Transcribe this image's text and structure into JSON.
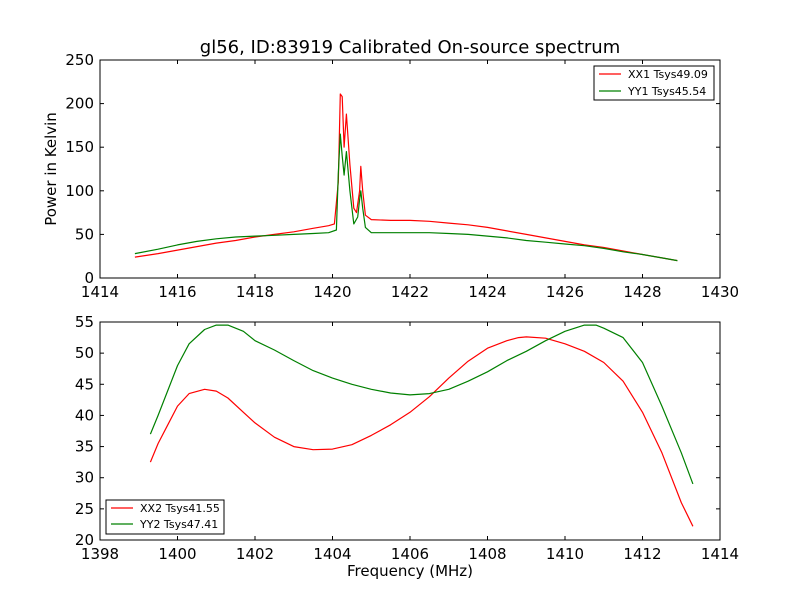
{
  "chart_data": [
    {
      "type": "line",
      "title": "gl56, ID:83919 Calibrated On-source spectrum",
      "xlabel": "",
      "ylabel": "Power in Kelvin",
      "xlim": [
        1414,
        1430
      ],
      "ylim": [
        0,
        250
      ],
      "xticks": [
        "1414",
        "1416",
        "1418",
        "1420",
        "1422",
        "1424",
        "1426",
        "1428",
        "1430"
      ],
      "yticks": [
        "0",
        "50",
        "100",
        "150",
        "200",
        "250"
      ],
      "grid": false,
      "legend": "top-right",
      "series": [
        {
          "name": "XX1 Tsys49.09",
          "color": "#ff0000",
          "points": [
            [
              1414.9,
              24
            ],
            [
              1415.5,
              28
            ],
            [
              1416,
              32
            ],
            [
              1416.5,
              36
            ],
            [
              1417,
              40
            ],
            [
              1417.5,
              43
            ],
            [
              1418,
              47
            ],
            [
              1418.5,
              50
            ],
            [
              1419,
              53
            ],
            [
              1419.5,
              57
            ],
            [
              1419.9,
              60
            ],
            [
              1420.05,
              62
            ],
            [
              1420.15,
              110
            ],
            [
              1420.2,
              211
            ],
            [
              1420.25,
              208
            ],
            [
              1420.3,
              150
            ],
            [
              1420.36,
              188
            ],
            [
              1420.45,
              130
            ],
            [
              1420.55,
              80
            ],
            [
              1420.62,
              75
            ],
            [
              1420.7,
              100
            ],
            [
              1420.73,
              128
            ],
            [
              1420.78,
              100
            ],
            [
              1420.85,
              72
            ],
            [
              1421,
              67
            ],
            [
              1421.5,
              66
            ],
            [
              1422,
              66
            ],
            [
              1422.5,
              65
            ],
            [
              1423,
              63
            ],
            [
              1423.5,
              61
            ],
            [
              1424,
              58
            ],
            [
              1424.5,
              54
            ],
            [
              1425,
              50
            ],
            [
              1425.5,
              46
            ],
            [
              1426,
              42
            ],
            [
              1426.5,
              38
            ],
            [
              1427,
              35
            ],
            [
              1427.5,
              31
            ],
            [
              1428,
              27
            ],
            [
              1428.5,
              23
            ],
            [
              1428.9,
              20
            ]
          ]
        },
        {
          "name": "YY1 Tsys45.54",
          "color": "#008000",
          "points": [
            [
              1414.9,
              28
            ],
            [
              1415.5,
              33
            ],
            [
              1416,
              38
            ],
            [
              1416.5,
              42
            ],
            [
              1417,
              45
            ],
            [
              1417.5,
              47
            ],
            [
              1418,
              48
            ],
            [
              1418.5,
              49
            ],
            [
              1419,
              50
            ],
            [
              1419.5,
              51
            ],
            [
              1419.9,
              52
            ],
            [
              1420.1,
              55
            ],
            [
              1420.15,
              120
            ],
            [
              1420.2,
              165
            ],
            [
              1420.25,
              140
            ],
            [
              1420.3,
              118
            ],
            [
              1420.36,
              145
            ],
            [
              1420.45,
              100
            ],
            [
              1420.55,
              62
            ],
            [
              1420.65,
              70
            ],
            [
              1420.7,
              90
            ],
            [
              1420.73,
              100
            ],
            [
              1420.78,
              80
            ],
            [
              1420.85,
              58
            ],
            [
              1421,
              52
            ],
            [
              1421.5,
              52
            ],
            [
              1422,
              52
            ],
            [
              1422.5,
              52
            ],
            [
              1423,
              51
            ],
            [
              1423.5,
              50
            ],
            [
              1424,
              48
            ],
            [
              1424.5,
              46
            ],
            [
              1425,
              43
            ],
            [
              1425.5,
              41
            ],
            [
              1426,
              39
            ],
            [
              1426.5,
              37
            ],
            [
              1427,
              34
            ],
            [
              1427.5,
              30
            ],
            [
              1428,
              27
            ],
            [
              1428.5,
              23
            ],
            [
              1428.9,
              20
            ]
          ]
        }
      ]
    },
    {
      "type": "line",
      "title": "",
      "xlabel": "Frequency (MHz)",
      "ylabel": "",
      "xlim": [
        1398,
        1414
      ],
      "ylim": [
        20,
        55
      ],
      "xticks": [
        "1398",
        "1400",
        "1402",
        "1404",
        "1406",
        "1408",
        "1410",
        "1412",
        "1414"
      ],
      "yticks": [
        "20",
        "25",
        "30",
        "35",
        "40",
        "45",
        "50",
        "55"
      ],
      "grid": false,
      "legend": "bottom-left",
      "series": [
        {
          "name": "XX2 Tsys41.55",
          "color": "#ff0000",
          "points": [
            [
              1399.3,
              32.5
            ],
            [
              1399.5,
              35.5
            ],
            [
              1399.75,
              38.5
            ],
            [
              1400,
              41.5
            ],
            [
              1400.3,
              43.5
            ],
            [
              1400.7,
              44.2
            ],
            [
              1401,
              43.9
            ],
            [
              1401.3,
              42.8
            ],
            [
              1401.7,
              40.5
            ],
            [
              1402,
              38.8
            ],
            [
              1402.5,
              36.5
            ],
            [
              1403,
              35
            ],
            [
              1403.5,
              34.5
            ],
            [
              1404,
              34.6
            ],
            [
              1404.5,
              35.3
            ],
            [
              1405,
              36.8
            ],
            [
              1405.5,
              38.5
            ],
            [
              1406,
              40.5
            ],
            [
              1406.5,
              43
            ],
            [
              1407,
              46
            ],
            [
              1407.5,
              48.7
            ],
            [
              1408,
              50.8
            ],
            [
              1408.5,
              52
            ],
            [
              1408.8,
              52.5
            ],
            [
              1409,
              52.6
            ],
            [
              1409.5,
              52.4
            ],
            [
              1410,
              51.5
            ],
            [
              1410.5,
              50.3
            ],
            [
              1411,
              48.5
            ],
            [
              1411.5,
              45.5
            ],
            [
              1412,
              40.5
            ],
            [
              1412.5,
              34
            ],
            [
              1413,
              26
            ],
            [
              1413.3,
              22.2
            ]
          ]
        },
        {
          "name": "YY2 Tsys47.41",
          "color": "#008000",
          "points": [
            [
              1399.3,
              37
            ],
            [
              1399.5,
              40
            ],
            [
              1399.75,
              44
            ],
            [
              1400,
              48
            ],
            [
              1400.3,
              51.5
            ],
            [
              1400.7,
              53.8
            ],
            [
              1401,
              54.5
            ],
            [
              1401.3,
              54.5
            ],
            [
              1401.7,
              53.5
            ],
            [
              1402,
              52
            ],
            [
              1402.5,
              50.5
            ],
            [
              1403,
              48.8
            ],
            [
              1403.5,
              47.2
            ],
            [
              1404,
              46
            ],
            [
              1404.5,
              45
            ],
            [
              1405,
              44.2
            ],
            [
              1405.5,
              43.6
            ],
            [
              1406,
              43.3
            ],
            [
              1406.5,
              43.5
            ],
            [
              1407,
              44.2
            ],
            [
              1407.5,
              45.5
            ],
            [
              1408,
              47
            ],
            [
              1408.5,
              48.8
            ],
            [
              1409,
              50.3
            ],
            [
              1409.5,
              52
            ],
            [
              1410,
              53.5
            ],
            [
              1410.5,
              54.5
            ],
            [
              1410.8,
              54.5
            ],
            [
              1411,
              54
            ],
            [
              1411.5,
              52.5
            ],
            [
              1412,
              48.5
            ],
            [
              1412.5,
              41.5
            ],
            [
              1413,
              34
            ],
            [
              1413.3,
              29
            ]
          ]
        }
      ]
    }
  ]
}
